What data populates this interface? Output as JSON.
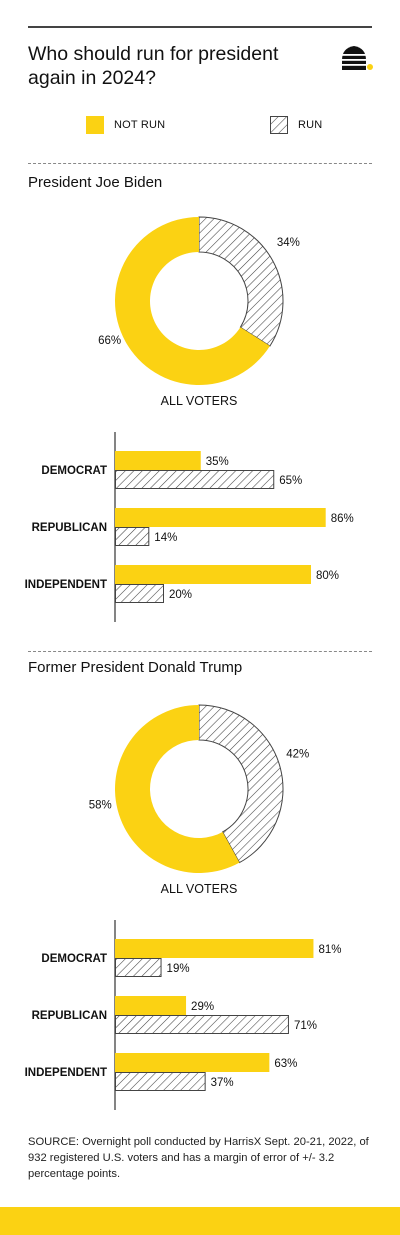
{
  "title": "Who should run for president again in 2024?",
  "colors": {
    "not_run": "#fbd213",
    "run_stroke": "#444444",
    "axis": "#333333"
  },
  "legend": [
    {
      "label": "NOT RUN",
      "style": "solid"
    },
    {
      "label": "RUN",
      "style": "hatched"
    }
  ],
  "sections": [
    {
      "title": "President Joe Biden"
    },
    {
      "title": "Former President Donald Trump"
    }
  ],
  "source": "SOURCE: Overnight poll conducted by HarrisX Sept. 20-21, 2022, of 932 registered U.S. voters and has a margin of error of +/- 3.2 percentage points.",
  "chart_data": [
    {
      "type": "pie",
      "title": "President Joe Biden",
      "label": "ALL VOTERS",
      "slices": [
        {
          "name": "NOT RUN",
          "value": 66,
          "label": "66%"
        },
        {
          "name": "RUN",
          "value": 34,
          "label": "34%"
        }
      ]
    },
    {
      "type": "bar",
      "orientation": "horizontal",
      "categories": [
        "DEMOCRAT",
        "REPUBLICAN",
        "INDEPENDENT"
      ],
      "xlim": [
        0,
        100
      ],
      "series": [
        {
          "name": "NOT RUN",
          "values": [
            35,
            86,
            80
          ],
          "labels": [
            "35%",
            "86%",
            "80%"
          ]
        },
        {
          "name": "RUN",
          "values": [
            65,
            14,
            20
          ],
          "labels": [
            "65%",
            "14%",
            "20%"
          ]
        }
      ]
    },
    {
      "type": "pie",
      "title": "Former President Donald Trump",
      "label": "ALL VOTERS",
      "slices": [
        {
          "name": "NOT RUN",
          "value": 58,
          "label": "58%"
        },
        {
          "name": "RUN",
          "value": 42,
          "label": "42%"
        }
      ]
    },
    {
      "type": "bar",
      "orientation": "horizontal",
      "categories": [
        "DEMOCRAT",
        "REPUBLICAN",
        "INDEPENDENT"
      ],
      "xlim": [
        0,
        100
      ],
      "series": [
        {
          "name": "NOT RUN",
          "values": [
            81,
            29,
            63
          ],
          "labels": [
            "81%",
            "29%",
            "63%"
          ]
        },
        {
          "name": "RUN",
          "values": [
            19,
            71,
            37
          ],
          "labels": [
            "19%",
            "71%",
            "37%"
          ]
        }
      ]
    }
  ]
}
